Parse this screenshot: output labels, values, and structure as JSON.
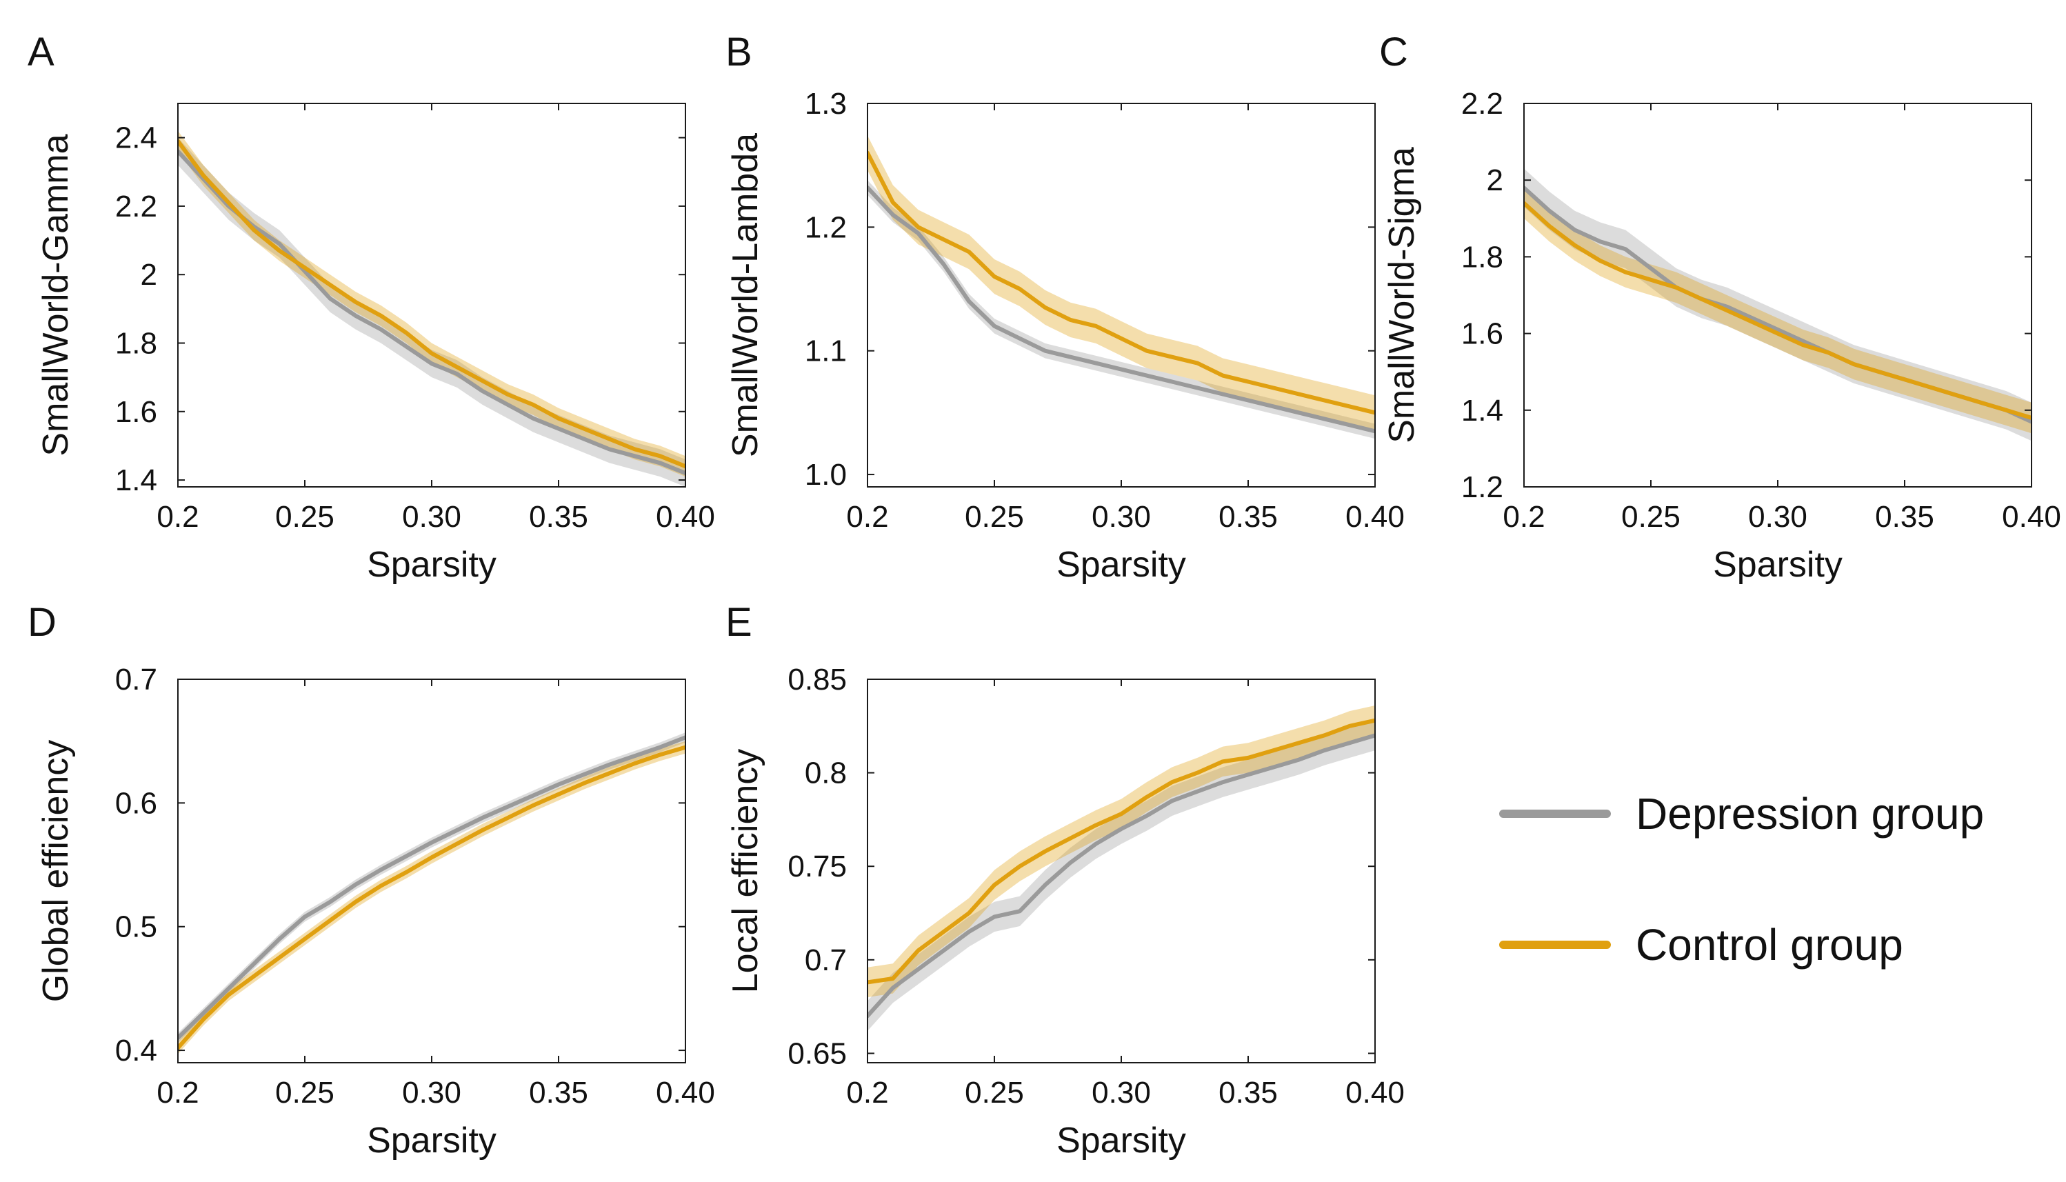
{
  "figure": {
    "legend": [
      {
        "name": "Depression group",
        "color": "#9a9a9a"
      },
      {
        "name": "Control group",
        "color": "#e0a010"
      }
    ]
  },
  "chart_data": [
    {
      "panel": "A",
      "type": "line",
      "title": "",
      "xlabel": "Sparsity",
      "ylabel": "SmallWorld-Gamma",
      "xlim": [
        0.2,
        0.4
      ],
      "ylim": [
        1.38,
        2.5
      ],
      "xticks": [
        0.2,
        0.25,
        0.3,
        0.35,
        0.4
      ],
      "xtick_labels": [
        "0.2",
        "0.25",
        "0.30",
        "0.35",
        "0.40"
      ],
      "yticks": [
        1.4,
        1.6,
        1.8,
        2.0,
        2.2,
        2.4
      ],
      "ytick_labels": [
        "1.4",
        "1.6",
        "1.8",
        "2",
        "2.2",
        "2.4"
      ],
      "x": [
        0.2,
        0.21,
        0.22,
        0.23,
        0.24,
        0.25,
        0.26,
        0.27,
        0.28,
        0.29,
        0.3,
        0.31,
        0.32,
        0.33,
        0.34,
        0.35,
        0.36,
        0.37,
        0.38,
        0.39,
        0.4
      ],
      "series": [
        {
          "name": "Depression group",
          "color": "#9a9a9a",
          "band": 0.04,
          "values": [
            2.36,
            2.28,
            2.2,
            2.14,
            2.09,
            2.01,
            1.93,
            1.88,
            1.84,
            1.79,
            1.74,
            1.71,
            1.66,
            1.62,
            1.58,
            1.55,
            1.52,
            1.49,
            1.47,
            1.45,
            1.42
          ]
        },
        {
          "name": "Control group",
          "color": "#e0a010",
          "band": 0.03,
          "values": [
            2.39,
            2.29,
            2.21,
            2.13,
            2.07,
            2.02,
            1.97,
            1.92,
            1.88,
            1.83,
            1.77,
            1.73,
            1.69,
            1.65,
            1.62,
            1.58,
            1.55,
            1.52,
            1.49,
            1.47,
            1.44
          ]
        }
      ]
    },
    {
      "panel": "B",
      "type": "line",
      "title": "",
      "xlabel": "Sparsity",
      "ylabel": "SmallWorld-Lambda",
      "xlim": [
        0.2,
        0.4
      ],
      "ylim": [
        0.99,
        1.3
      ],
      "xticks": [
        0.2,
        0.25,
        0.3,
        0.35,
        0.4
      ],
      "xtick_labels": [
        "0.2",
        "0.25",
        "0.30",
        "0.35",
        "0.40"
      ],
      "yticks": [
        1.0,
        1.1,
        1.2,
        1.3
      ],
      "ytick_labels": [
        "1.0",
        "1.1",
        "1.2",
        "1.3"
      ],
      "x": [
        0.2,
        0.21,
        0.22,
        0.23,
        0.24,
        0.25,
        0.26,
        0.27,
        0.28,
        0.29,
        0.3,
        0.31,
        0.32,
        0.33,
        0.34,
        0.35,
        0.36,
        0.37,
        0.38,
        0.39,
        0.4
      ],
      "series": [
        {
          "name": "Depression group",
          "color": "#9a9a9a",
          "band": 0.006,
          "values": [
            1.232,
            1.21,
            1.195,
            1.17,
            1.14,
            1.12,
            1.11,
            1.1,
            1.095,
            1.09,
            1.085,
            1.08,
            1.075,
            1.07,
            1.065,
            1.06,
            1.055,
            1.05,
            1.045,
            1.04,
            1.035
          ]
        },
        {
          "name": "Control group",
          "color": "#e0a010",
          "band": 0.014,
          "values": [
            1.26,
            1.22,
            1.2,
            1.19,
            1.18,
            1.16,
            1.15,
            1.135,
            1.125,
            1.12,
            1.11,
            1.1,
            1.095,
            1.09,
            1.08,
            1.075,
            1.07,
            1.065,
            1.06,
            1.055,
            1.05
          ]
        }
      ]
    },
    {
      "panel": "C",
      "type": "line",
      "title": "",
      "xlabel": "Sparsity",
      "ylabel": "SmallWorld-Sigma",
      "xlim": [
        0.2,
        0.4
      ],
      "ylim": [
        1.2,
        2.2
      ],
      "xticks": [
        0.2,
        0.25,
        0.3,
        0.35,
        0.4
      ],
      "xtick_labels": [
        "0.2",
        "0.25",
        "0.30",
        "0.35",
        "0.40"
      ],
      "yticks": [
        1.2,
        1.4,
        1.6,
        1.8,
        2.0,
        2.2
      ],
      "ytick_labels": [
        "1.2",
        "1.4",
        "1.6",
        "1.8",
        "2",
        "2.2"
      ],
      "x": [
        0.2,
        0.21,
        0.22,
        0.23,
        0.24,
        0.25,
        0.26,
        0.27,
        0.28,
        0.29,
        0.3,
        0.31,
        0.32,
        0.33,
        0.34,
        0.35,
        0.36,
        0.37,
        0.38,
        0.39,
        0.4
      ],
      "series": [
        {
          "name": "Depression group",
          "color": "#9a9a9a",
          "band": 0.05,
          "values": [
            1.98,
            1.92,
            1.87,
            1.84,
            1.82,
            1.77,
            1.72,
            1.69,
            1.67,
            1.64,
            1.61,
            1.58,
            1.55,
            1.52,
            1.5,
            1.48,
            1.46,
            1.44,
            1.42,
            1.4,
            1.37
          ]
        },
        {
          "name": "Control group",
          "color": "#e0a010",
          "band": 0.04,
          "values": [
            1.94,
            1.88,
            1.83,
            1.79,
            1.76,
            1.74,
            1.72,
            1.69,
            1.66,
            1.63,
            1.6,
            1.57,
            1.55,
            1.52,
            1.5,
            1.48,
            1.46,
            1.44,
            1.42,
            1.4,
            1.38
          ]
        }
      ]
    },
    {
      "panel": "D",
      "type": "line",
      "title": "",
      "xlabel": "Sparsity",
      "ylabel": "Global efficiency",
      "xlim": [
        0.2,
        0.4
      ],
      "ylim": [
        0.39,
        0.7
      ],
      "xticks": [
        0.2,
        0.25,
        0.3,
        0.35,
        0.4
      ],
      "xtick_labels": [
        "0.2",
        "0.25",
        "0.30",
        "0.35",
        "0.40"
      ],
      "yticks": [
        0.4,
        0.5,
        0.6,
        0.7
      ],
      "ytick_labels": [
        "0.4",
        "0.5",
        "0.6",
        "0.7"
      ],
      "x": [
        0.2,
        0.21,
        0.22,
        0.23,
        0.24,
        0.25,
        0.26,
        0.27,
        0.28,
        0.29,
        0.3,
        0.31,
        0.32,
        0.33,
        0.34,
        0.35,
        0.36,
        0.37,
        0.38,
        0.39,
        0.4
      ],
      "series": [
        {
          "name": "Depression group",
          "color": "#9a9a9a",
          "band": 0.004,
          "values": [
            0.41,
            0.43,
            0.45,
            0.47,
            0.49,
            0.508,
            0.52,
            0.534,
            0.546,
            0.557,
            0.568,
            0.578,
            0.588,
            0.597,
            0.606,
            0.615,
            0.623,
            0.631,
            0.638,
            0.645,
            0.653
          ]
        },
        {
          "name": "Control group",
          "color": "#e0a010",
          "band": 0.005,
          "values": [
            0.402,
            0.425,
            0.445,
            0.46,
            0.475,
            0.49,
            0.505,
            0.52,
            0.533,
            0.544,
            0.556,
            0.567,
            0.578,
            0.588,
            0.598,
            0.607,
            0.616,
            0.624,
            0.632,
            0.639,
            0.645
          ]
        }
      ]
    },
    {
      "panel": "E",
      "type": "line",
      "title": "",
      "xlabel": "Sparsity",
      "ylabel": "Local efficiency",
      "xlim": [
        0.2,
        0.4
      ],
      "ylim": [
        0.645,
        0.85
      ],
      "xticks": [
        0.2,
        0.25,
        0.3,
        0.35,
        0.4
      ],
      "xtick_labels": [
        "0.2",
        "0.25",
        "0.30",
        "0.35",
        "0.40"
      ],
      "yticks": [
        0.65,
        0.7,
        0.75,
        0.8,
        0.85
      ],
      "ytick_labels": [
        "0.65",
        "0.7",
        "0.75",
        "0.8",
        "0.85"
      ],
      "x": [
        0.2,
        0.21,
        0.22,
        0.23,
        0.24,
        0.25,
        0.26,
        0.27,
        0.28,
        0.29,
        0.3,
        0.31,
        0.32,
        0.33,
        0.34,
        0.35,
        0.36,
        0.37,
        0.38,
        0.39,
        0.4
      ],
      "series": [
        {
          "name": "Depression group",
          "color": "#9a9a9a",
          "band": 0.008,
          "values": [
            0.67,
            0.685,
            0.695,
            0.705,
            0.715,
            0.723,
            0.726,
            0.74,
            0.752,
            0.762,
            0.77,
            0.777,
            0.785,
            0.79,
            0.795,
            0.799,
            0.803,
            0.807,
            0.812,
            0.816,
            0.82
          ]
        },
        {
          "name": "Control group",
          "color": "#e0a010",
          "band": 0.008,
          "values": [
            0.688,
            0.69,
            0.705,
            0.715,
            0.725,
            0.74,
            0.75,
            0.758,
            0.765,
            0.772,
            0.778,
            0.787,
            0.795,
            0.8,
            0.806,
            0.808,
            0.812,
            0.816,
            0.82,
            0.825,
            0.828
          ]
        }
      ]
    }
  ]
}
